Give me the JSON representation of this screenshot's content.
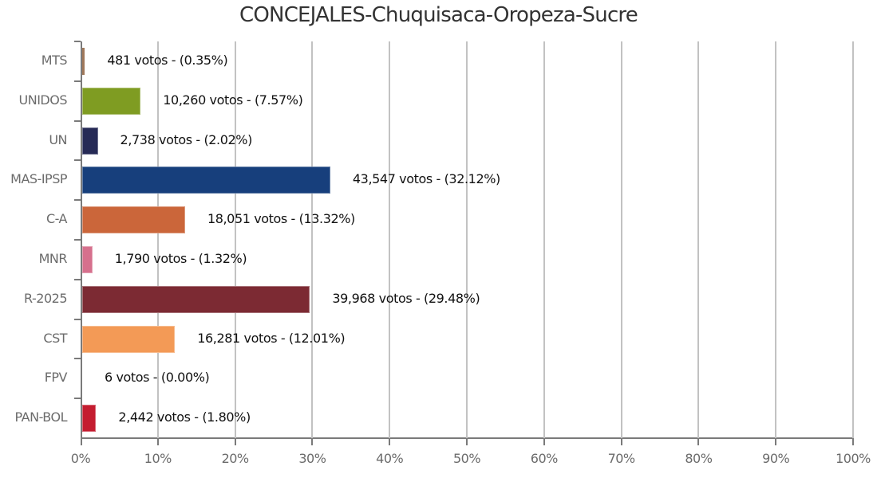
{
  "chart_data": {
    "type": "bar",
    "orientation": "horizontal",
    "title": "CONCEJALES-Chuquisaca-Oropeza-Sucre",
    "xlabel": "",
    "ylabel": "",
    "xlim": [
      0,
      100
    ],
    "x_ticks": [
      "0%",
      "10%",
      "20%",
      "30%",
      "40%",
      "50%",
      "60%",
      "70%",
      "80%",
      "90%",
      "100%"
    ],
    "grid": true,
    "legend": null,
    "categories": [
      "MTS",
      "UNIDOS",
      "UN",
      "MAS-IPSP",
      "C-A",
      "MNR",
      "R-2025",
      "CST",
      "FPV",
      "PAN-BOL"
    ],
    "values": [
      0.35,
      7.57,
      2.02,
      32.12,
      13.32,
      1.32,
      29.48,
      12.01,
      0.0,
      1.8
    ],
    "votes": [
      481,
      10260,
      2738,
      43547,
      18051,
      1790,
      39968,
      16281,
      6,
      2442
    ],
    "data_labels": [
      "481 votos - (0.35%)",
      "10,260 votos - (7.57%)",
      "2,738 votos - (2.02%)",
      "43,547 votos - (32.12%)",
      "18,051 votos - (13.32%)",
      "1,790 votos - (1.32%)",
      "39,968 votos - (29.48%)",
      "16,281 votos - (12.01%)",
      "6 votos - (0.00%)",
      "2,442 votos - (1.80%)"
    ],
    "colors": [
      "#a0785a",
      "#7f9c22",
      "#262a56",
      "#173f7c",
      "#cb663a",
      "#d6708d",
      "#7c2a33",
      "#f39a56",
      "#ffffff",
      "#c41d30"
    ]
  }
}
